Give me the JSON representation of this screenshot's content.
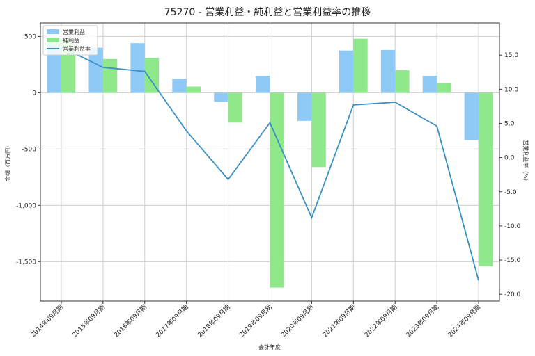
{
  "chart_data": {
    "type": "bar",
    "title": "75270 - 営業利益・純利益と営業利益率の推移",
    "xlabel": "会計年度",
    "ylabel_left": "金額（百万円）",
    "ylabel_right": "営業利益率（%）",
    "categories": [
      "2014年09月期",
      "2015年09月期",
      "2016年09月期",
      "2017年09月期",
      "2018年09月期",
      "2019年09月期",
      "2020年09月期",
      "2021年09月期",
      "2022年09月期",
      "2023年09月期",
      "2024年09月期"
    ],
    "left_ylim": [
      -1850,
      620
    ],
    "left_ticks": [
      500,
      0,
      -500,
      -1000,
      -1500
    ],
    "left_tick_labels": [
      "500",
      "0",
      "-500",
      "-1,000",
      "-1,500"
    ],
    "right_ylim": [
      -21.0,
      19.7
    ],
    "right_ticks": [
      15.0,
      10.0,
      5.0,
      0.0,
      -5.0,
      -10.0,
      -15.0,
      -20.0
    ],
    "right_tick_labels": [
      "15.0",
      "10.0",
      "5.0",
      "0.0",
      "-5.0",
      "-10.0",
      "-15.0",
      "-20.0"
    ],
    "grid": true,
    "legend_position": "top-left",
    "series": [
      {
        "name": "営業利益",
        "kind": "bar",
        "axis": "left",
        "color": "#8ecaf5",
        "values": [
          440,
          400,
          440,
          125,
          -80,
          150,
          -250,
          375,
          380,
          150,
          -420
        ]
      },
      {
        "name": "純利益",
        "kind": "bar",
        "axis": "left",
        "color": "#8fe88a",
        "values": [
          470,
          300,
          310,
          55,
          -265,
          -1730,
          -660,
          480,
          200,
          85,
          -1540
        ]
      },
      {
        "name": "営業利益率",
        "kind": "line",
        "axis": "right",
        "color": "#3a8fc4",
        "values": [
          16.2,
          13.2,
          12.6,
          3.9,
          -3.2,
          5.1,
          -8.8,
          7.7,
          8.1,
          4.6,
          -18.0
        ]
      }
    ]
  }
}
